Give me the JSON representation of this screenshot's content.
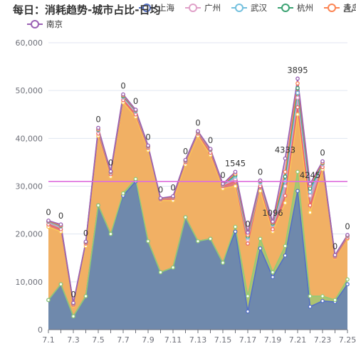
{
  "chart_data": {
    "type": "area",
    "title": "每日：消耗趋势-城市占比-日均",
    "x": [
      "7.1",
      "7.2",
      "7.3",
      "7.4",
      "7.5",
      "7.6",
      "7.7",
      "7.8",
      "7.9",
      "7.10",
      "7.11",
      "7.12",
      "7.13",
      "7.14",
      "7.15",
      "7.16",
      "7.17",
      "7.18",
      "7.19",
      "7.20",
      "7.21",
      "7.22",
      "7.23",
      "7.24",
      "7.25"
    ],
    "x_tick_labels": [
      "7.1",
      "7.3",
      "7.5",
      "7.7",
      "7.9",
      "7.11",
      "7.13",
      "7.15",
      "7.17",
      "7.19",
      "7.21",
      "7.23",
      "7.25"
    ],
    "ylim": [
      0,
      60000
    ],
    "y_ticks": [
      "0",
      "10,000",
      "20,000",
      "30,000",
      "40,000",
      "50,000",
      "60,000"
    ],
    "grid": true,
    "legend_position": "top",
    "series": [
      {
        "name": "上海",
        "color": "#5470c6",
        "values": [
          6200,
          9500,
          2800,
          7000,
          26000,
          20000,
          28000,
          31000,
          18500,
          12000,
          13000,
          23500,
          18500,
          19000,
          14000,
          20500,
          3800,
          17000,
          11000,
          15500,
          29000,
          4800,
          6000,
          5800,
          9500
        ]
      },
      {
        "name": "",
        "color": "#91cc75",
        "values": [
          6200,
          9500,
          2800,
          7000,
          26000,
          20000,
          28500,
          31500,
          18500,
          12000,
          13000,
          23500,
          18500,
          19000,
          14000,
          21500,
          7000,
          19000,
          12000,
          17500,
          33000,
          7000,
          7000,
          6200,
          10500
        ]
      },
      {
        "name": "",
        "color": "#fac858",
        "values": [
          21500,
          20500,
          5000,
          17500,
          40500,
          32000,
          47500,
          44500,
          37500,
          27000,
          27000,
          34500,
          40500,
          36500,
          29500,
          30000,
          18500,
          29000,
          20500,
          26500,
          45000,
          24500,
          33500,
          15000,
          19000
        ]
      },
      {
        "name": "",
        "color": "#ee6666",
        "values": [
          22000,
          21000,
          5200,
          18000,
          41000,
          32500,
          48000,
          45000,
          38000,
          27200,
          27500,
          35000,
          41000,
          37000,
          30000,
          31000,
          18000,
          30000,
          21000,
          28000,
          46500,
          26000,
          34000,
          15200,
          19200
        ]
      },
      {
        "name": "广州",
        "color": "#e0a0c8",
        "values": [
          22500,
          21500,
          5400,
          18200,
          41500,
          32800,
          48500,
          45500,
          38200,
          27300,
          27700,
          35200,
          41200,
          37500,
          30200,
          31500,
          18800,
          30500,
          21800,
          30000,
          48500,
          28000,
          34500,
          15400,
          19500
        ]
      },
      {
        "name": "武汉",
        "color": "#73c0de",
        "values": [
          22600,
          21600,
          5450,
          18250,
          41700,
          32900,
          48700,
          45700,
          38300,
          27350,
          27750,
          35300,
          41300,
          37600,
          30300,
          32000,
          19200,
          30800,
          22000,
          31000,
          49500,
          28800,
          34700,
          15450,
          19600
        ]
      },
      {
        "name": "杭州",
        "color": "#3ba272",
        "values": [
          22650,
          21700,
          5480,
          18280,
          41800,
          32950,
          48800,
          45800,
          38350,
          27380,
          27780,
          35350,
          41350,
          37650,
          30350,
          32300,
          19500,
          31000,
          22200,
          32000,
          50500,
          29500,
          34800,
          15480,
          19650
        ]
      },
      {
        "name": "青岛",
        "color": "#fc8452",
        "values": [
          22700,
          21800,
          5500,
          18300,
          41900,
          33000,
          49000,
          45900,
          38400,
          27400,
          27800,
          35400,
          41400,
          37700,
          30400,
          32600,
          19800,
          31100,
          22400,
          33000,
          51500,
          30200,
          34900,
          15500,
          19700
        ]
      },
      {
        "name": "南京",
        "color": "#9a60b4",
        "values": [
          22800,
          22000,
          5600,
          18400,
          42200,
          33100,
          49200,
          46000,
          38500,
          27500,
          27900,
          35500,
          41500,
          37800,
          30500,
          33000,
          20300,
          31200,
          22600,
          35800,
          52500,
          30500,
          35200,
          15600,
          19800
        ]
      }
    ],
    "mean_line": {
      "value": 31000,
      "color": "#dd6edd"
    },
    "data_labels": [
      {
        "i": 0,
        "text": "0"
      },
      {
        "i": 1,
        "text": "0"
      },
      {
        "i": 2,
        "text": "0"
      },
      {
        "i": 3,
        "text": "0"
      },
      {
        "i": 4,
        "text": "0"
      },
      {
        "i": 5,
        "text": "0"
      },
      {
        "i": 6,
        "text": "0"
      },
      {
        "i": 7,
        "text": "0"
      },
      {
        "i": 8,
        "text": "0"
      },
      {
        "i": 9,
        "text": "0"
      },
      {
        "i": 10,
        "text": "0"
      },
      {
        "i": 11,
        "text": "0"
      },
      {
        "i": 12,
        "text": "0"
      },
      {
        "i": 13,
        "text": "0"
      },
      {
        "i": 14,
        "text": "0"
      },
      {
        "i": 15,
        "text": "1545"
      },
      {
        "i": 16,
        "text": "0"
      },
      {
        "i": 17,
        "text": "0"
      },
      {
        "i": 18,
        "text": "1096"
      },
      {
        "i": 19,
        "text": "4333"
      },
      {
        "i": 20,
        "text": "3895"
      },
      {
        "i": 21,
        "text": "4245"
      },
      {
        "i": 22,
        "text": "0"
      },
      {
        "i": 23,
        "text": "0"
      },
      {
        "i": 24,
        "text": "0"
      }
    ]
  },
  "download_icon": "download-icon"
}
